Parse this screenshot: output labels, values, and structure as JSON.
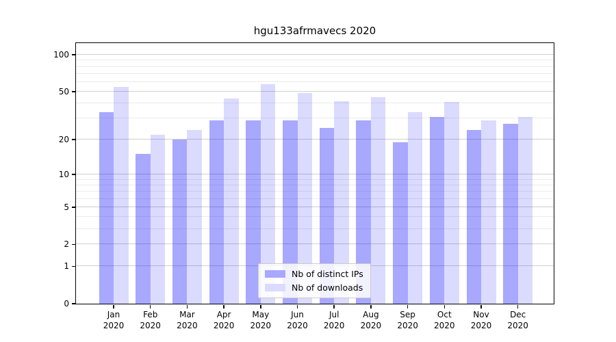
{
  "page": {
    "background": "#ffffff"
  },
  "chart_data": {
    "type": "bar",
    "title": "hgu133afrmavecs 2020",
    "year": "2020",
    "categories": [
      "Jan",
      "Feb",
      "Mar",
      "Apr",
      "May",
      "Jun",
      "Jul",
      "Aug",
      "Sep",
      "Oct",
      "Nov",
      "Dec"
    ],
    "series": [
      {
        "name": "Nb of distinct IPs",
        "color_hex": "#a8a8ff",
        "fill": "rgba(0,0,255,0.34)",
        "values": [
          34,
          15,
          20,
          29,
          29,
          29,
          25,
          29,
          19,
          31,
          24,
          27
        ]
      },
      {
        "name": "Nb of downloads",
        "color_hex": "#dbdbff",
        "fill": "rgba(0,0,255,0.14)",
        "values": [
          55,
          22,
          24,
          44,
          58,
          49,
          42,
          45,
          34,
          41,
          29,
          31
        ]
      }
    ],
    "yscale": "log1p",
    "ylim": [
      0,
      127
    ],
    "yticks": [
      0,
      1,
      2,
      5,
      10,
      20,
      50,
      100
    ],
    "minor_yticks": [
      3,
      4,
      6,
      7,
      8,
      9,
      30,
      40,
      60,
      70,
      80,
      90
    ],
    "grid": "horizontal",
    "legend": {
      "position": "bottom-center",
      "items": [
        "Nb of distinct IPs",
        "Nb of downloads"
      ]
    }
  },
  "colors": {
    "grid_major": "#cfcfcf",
    "grid_minor": "#ebebeb",
    "spine": "#000000",
    "text": "#000000",
    "legend_border": "#cccccc",
    "legend_bg": "rgba(255,255,255,0.85)"
  }
}
